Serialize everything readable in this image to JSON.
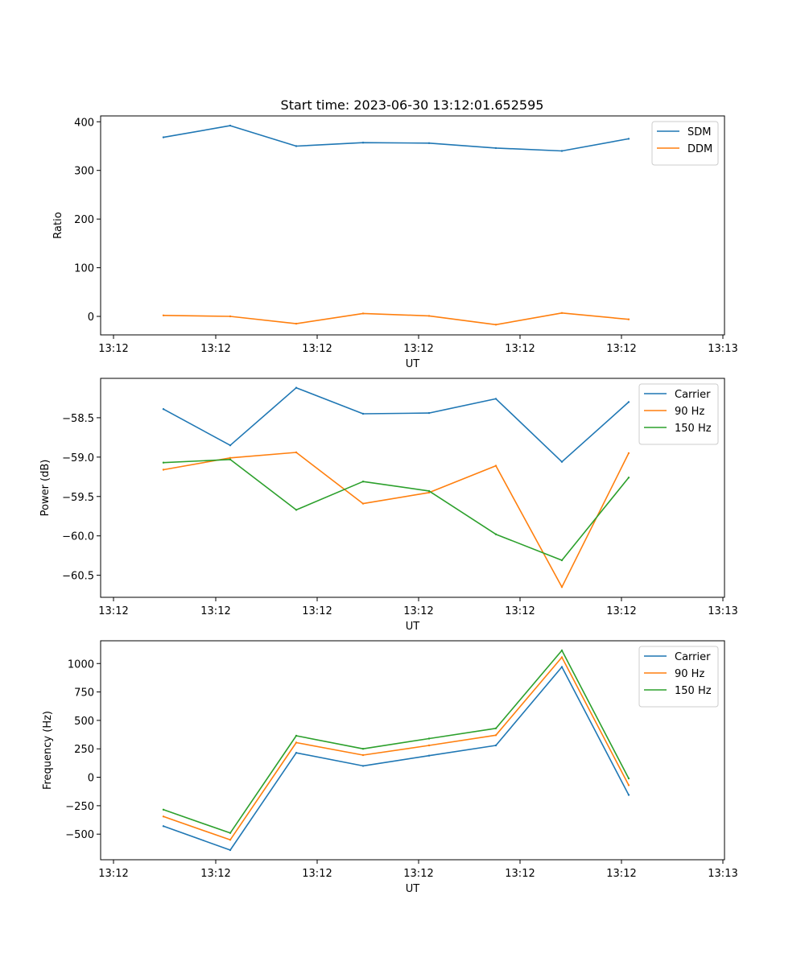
{
  "figure_title": "Start time: 2023-06-30 13:12:01.652595",
  "chart_data": [
    {
      "type": "line",
      "title": "Start time: 2023-06-30 13:12:01.652595",
      "xlabel": "UT",
      "ylabel": "Ratio",
      "xtick_labels": [
        "13:12",
        "13:12",
        "13:12",
        "13:12",
        "13:12",
        "13:12",
        "13:13"
      ],
      "yticks": [
        0,
        100,
        200,
        300,
        400
      ],
      "ytick_labels": [
        "0",
        "100",
        "200",
        "300",
        "400"
      ],
      "ylim": [
        -38,
        412
      ],
      "legend_position": "top-right",
      "series": [
        {
          "name": "SDM",
          "color": "#1f77b4",
          "values": [
            368,
            392,
            350,
            357,
            356,
            346,
            340,
            365
          ]
        },
        {
          "name": "DDM",
          "color": "#ff7f0e",
          "values": [
            2,
            0,
            -15,
            6,
            1,
            -17,
            7,
            -6
          ]
        }
      ]
    },
    {
      "type": "line",
      "xlabel": "UT",
      "ylabel": "Power (dB)",
      "xtick_labels": [
        "13:12",
        "13:12",
        "13:12",
        "13:12",
        "13:12",
        "13:12",
        "13:13"
      ],
      "yticks": [
        -58.5,
        -59.0,
        -59.5,
        -60.0,
        -60.5
      ],
      "ytick_labels": [
        "−58.5",
        "−59.0",
        "−59.5",
        "−60.0",
        "−60.5"
      ],
      "ylim": [
        -60.78,
        -58.0
      ],
      "legend_position": "top-right",
      "series": [
        {
          "name": "Carrier",
          "color": "#1f77b4",
          "values": [
            -58.39,
            -58.85,
            -58.12,
            -58.45,
            -58.44,
            -58.26,
            -59.06,
            -58.3
          ]
        },
        {
          "name": "90 Hz",
          "color": "#ff7f0e",
          "values": [
            -59.16,
            -59.01,
            -58.94,
            -59.59,
            -59.45,
            -59.11,
            -60.65,
            -58.95
          ]
        },
        {
          "name": "150 Hz",
          "color": "#2ca02c",
          "values": [
            -59.07,
            -59.03,
            -59.67,
            -59.31,
            -59.43,
            -59.98,
            -60.31,
            -59.26
          ]
        }
      ]
    },
    {
      "type": "line",
      "xlabel": "UT",
      "ylabel": "Frequency (Hz)",
      "xtick_labels": [
        "13:12",
        "13:12",
        "13:12",
        "13:12",
        "13:12",
        "13:12",
        "13:13"
      ],
      "yticks": [
        1000,
        750,
        500,
        250,
        0,
        -250,
        -500
      ],
      "ytick_labels": [
        "1000",
        "750",
        "500",
        "250",
        "0",
        "−250",
        "−500"
      ],
      "ylim": [
        -725,
        1200
      ],
      "legend_position": "top-right",
      "series": [
        {
          "name": "Carrier",
          "color": "#1f77b4",
          "values": [
            -430,
            -640,
            215,
            100,
            190,
            280,
            970,
            -155
          ]
        },
        {
          "name": "90 Hz",
          "color": "#ff7f0e",
          "values": [
            -345,
            -550,
            305,
            195,
            280,
            370,
            1055,
            -70
          ]
        },
        {
          "name": "150 Hz",
          "color": "#2ca02c",
          "values": [
            -285,
            -490,
            365,
            250,
            340,
            430,
            1115,
            -10
          ]
        }
      ]
    }
  ]
}
